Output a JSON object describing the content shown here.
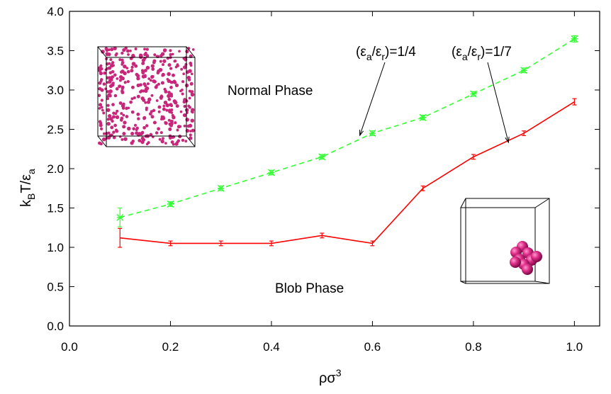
{
  "chart_data": {
    "type": "line",
    "xlabel": {
      "base": "ρσ",
      "sup": "3"
    },
    "ylabel": {
      "k": "k",
      "sub_B": "B",
      "mid": "T/ε",
      "sub_a": "a"
    },
    "xlim": [
      0.0,
      1.05
    ],
    "ylim": [
      0.0,
      4.0
    ],
    "xticks": [
      "0.0",
      "0.2",
      "0.4",
      "0.6",
      "0.8",
      "1.0"
    ],
    "xtick_values": [
      0.0,
      0.2,
      0.4,
      0.6,
      0.8,
      1.0
    ],
    "yticks": [
      "0.0",
      "0.5",
      "1.0",
      "1.5",
      "2.0",
      "2.5",
      "3.0",
      "3.5",
      "4.0"
    ],
    "ytick_values": [
      0.0,
      0.5,
      1.0,
      1.5,
      2.0,
      2.5,
      3.0,
      3.5,
      4.0
    ],
    "grid": false,
    "series": [
      {
        "name": "(εa/εr)=1/4",
        "color": "#33ff33",
        "dashed": true,
        "marker": "star",
        "x": [
          0.1,
          0.2,
          0.3,
          0.4,
          0.5,
          0.6,
          0.7,
          0.8,
          0.9,
          1.0
        ],
        "y": [
          1.38,
          1.55,
          1.75,
          1.95,
          2.15,
          2.45,
          2.65,
          2.95,
          3.25,
          3.65
        ],
        "err": [
          0.12,
          0.03,
          0.03,
          0.03,
          0.03,
          0.03,
          0.03,
          0.03,
          0.03,
          0.04
        ]
      },
      {
        "name": "(εa/εr)=1/7",
        "color": "#ff0000",
        "dashed": false,
        "marker": "errorbar",
        "x": [
          0.1,
          0.2,
          0.3,
          0.4,
          0.5,
          0.6,
          0.7,
          0.8,
          0.9,
          1.0
        ],
        "y": [
          1.12,
          1.05,
          1.05,
          1.05,
          1.15,
          1.05,
          1.75,
          2.15,
          2.45,
          2.85
        ],
        "err": [
          0.12,
          0.03,
          0.03,
          0.03,
          0.03,
          0.03,
          0.03,
          0.03,
          0.03,
          0.04
        ]
      }
    ],
    "annotations": [
      {
        "id": "label_1_4",
        "pre": "(ε",
        "sub1": "a",
        "mid": "/ε",
        "sub2": "r",
        "post": ")=1/4",
        "arrow_to": [
          0.575,
          2.45
        ]
      },
      {
        "id": "label_1_7",
        "pre": "(ε",
        "sub1": "a",
        "mid": "/ε",
        "sub2": "r",
        "post": ")=1/7",
        "arrow_to": [
          0.875,
          2.37
        ]
      },
      {
        "id": "normal",
        "text": "Normal Phase"
      },
      {
        "id": "blob",
        "text": "Blob Phase"
      }
    ]
  }
}
